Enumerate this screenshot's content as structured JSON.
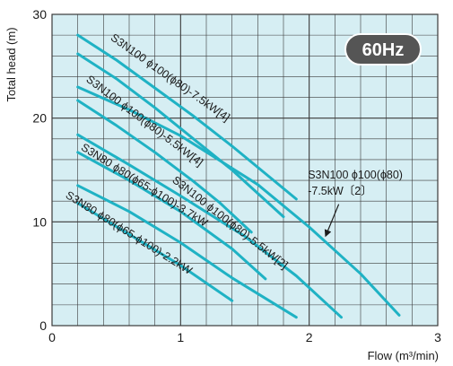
{
  "chart_data": {
    "type": "line",
    "xlabel": "Flow (m³/min)",
    "ylabel": "Total head (m)",
    "xlim": [
      0,
      3
    ],
    "ylim": [
      0,
      30
    ],
    "x_ticks": [
      "0",
      "1",
      "2",
      "3"
    ],
    "y_ticks": [
      "0",
      "10",
      "20",
      "30"
    ],
    "grid": true,
    "badge": "60Hz",
    "colors": {
      "curve": "#1fb2c4",
      "plot_bg": "#d6eef3",
      "grid": "#3a3a3a",
      "badge_bg": "#555555"
    },
    "series": [
      {
        "x": [
          0.2,
          0.5,
          0.8,
          1.1,
          1.4,
          1.9
        ],
        "y": [
          28.0,
          25.6,
          22.9,
          20.2,
          17.3,
          12.2
        ]
      },
      {
        "x": [
          0.2,
          0.5,
          0.8,
          1.1,
          1.4,
          1.8
        ],
        "y": [
          26.2,
          23.8,
          21.0,
          18.0,
          15.0,
          10.5
        ]
      },
      {
        "x": [
          0.2,
          0.6,
          1.0,
          1.6,
          2.0,
          2.4,
          2.7
        ],
        "y": [
          23.0,
          20.8,
          18.3,
          13.6,
          9.5,
          5.0,
          1.0
        ]
      },
      {
        "x": [
          0.2,
          0.5,
          0.8,
          1.1,
          1.3,
          1.55
        ],
        "y": [
          21.7,
          19.3,
          16.7,
          13.9,
          11.9,
          9.0
        ]
      },
      {
        "x": [
          0.2,
          0.6,
          1.0,
          1.5,
          1.9,
          2.25
        ],
        "y": [
          18.4,
          15.5,
          12.5,
          8.6,
          4.8,
          0.8
        ]
      },
      {
        "x": [
          0.2,
          0.6,
          1.0,
          1.4,
          1.66
        ],
        "y": [
          16.7,
          14.0,
          11.0,
          7.4,
          4.5
        ]
      },
      {
        "x": [
          0.2,
          0.6,
          1.0,
          1.4,
          1.9
        ],
        "y": [
          13.5,
          11.0,
          8.0,
          4.6,
          0.8
        ]
      },
      {
        "x": [
          0.2,
          0.6,
          1.0,
          1.4
        ],
        "y": [
          11.8,
          8.8,
          5.8,
          2.4
        ]
      }
    ],
    "annotations": [
      {
        "text": "S3N100 ϕ100(ϕ80)-7.5kW[4]",
        "x": 0.45,
        "y": 27.6,
        "angle": 35.3
      },
      {
        "text": "S3N100 ϕ100(ϕ80)-5.5kW[4]",
        "x": 0.26,
        "y": 23.6,
        "angle": 37
      },
      {
        "text": "S3N100 ϕ100(ϕ80)-5.5kW[2]",
        "x": 0.93,
        "y": 13.9,
        "angle": 38
      },
      {
        "text": "S3N80 ϕ80(ϕ65-ϕ100)-3.7kW",
        "x": 0.22,
        "y": 17.0,
        "angle": 32
      },
      {
        "text": "S3N80 ϕ80(ϕ65-ϕ100)-2.2kW",
        "x": 0.1,
        "y": 12.4,
        "angle": 32
      }
    ],
    "callout": {
      "lines": [
        "S3N100 ϕ100(ϕ80)",
        "-7.5kW〔2〕"
      ],
      "text_x": 1.99,
      "text_y": 14.2,
      "arrow_from": [
        2.23,
        11.7
      ],
      "arrow_to": [
        2.13,
        8.7
      ]
    }
  }
}
